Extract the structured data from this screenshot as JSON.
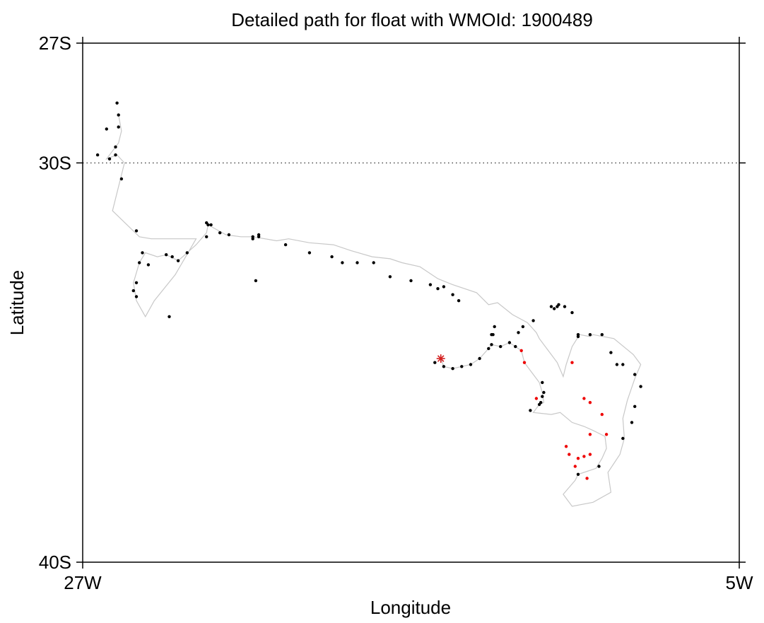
{
  "chart_data": {
    "type": "scatter",
    "title": "Detailed path for float with WMOId: 1900489",
    "xlabel": "Longitude",
    "ylabel": "Latitude",
    "xlim": [
      -27,
      -5
    ],
    "ylim": [
      -40,
      -27
    ],
    "x_ticks": [
      {
        "value": -27,
        "label": "27W"
      },
      {
        "value": -5,
        "label": "5W"
      }
    ],
    "y_ticks": [
      {
        "value": -27,
        "label": "27S"
      },
      {
        "value": -30,
        "label": "30S"
      },
      {
        "value": -40,
        "label": "40S"
      }
    ],
    "gridlines": [
      {
        "axis": "y",
        "value": -30,
        "style": "dotted"
      }
    ],
    "colors": {
      "path": "#c8c8c8",
      "profile": "#000000",
      "recent": "#ee0000",
      "deploy": "#d42020"
    },
    "deployment": {
      "lon": -15.0,
      "lat": -34.9,
      "marker": "asterisk"
    },
    "series": [
      {
        "role": "profile",
        "points": [
          [
            -15.2,
            -35.0
          ],
          [
            -14.9,
            -35.1
          ],
          [
            -14.6,
            -35.15
          ],
          [
            -14.3,
            -35.1
          ],
          [
            -14.0,
            -35.05
          ],
          [
            -13.7,
            -34.9
          ],
          [
            -13.4,
            -34.65
          ],
          [
            -13.3,
            -34.55
          ],
          [
            -13.0,
            -34.6
          ],
          [
            -12.7,
            -34.5
          ],
          [
            -12.5,
            -34.6
          ],
          [
            -13.3,
            -34.3
          ],
          [
            -13.25,
            -34.3
          ],
          [
            -13.2,
            -34.1
          ],
          [
            -12.4,
            -34.25
          ],
          [
            -12.25,
            -34.1
          ],
          [
            -11.9,
            -33.95
          ],
          [
            -11.3,
            -33.6
          ],
          [
            -11.2,
            -33.65
          ],
          [
            -11.1,
            -33.6
          ],
          [
            -11.05,
            -33.55
          ],
          [
            -10.85,
            -33.6
          ],
          [
            -10.6,
            -33.75
          ],
          [
            -10.4,
            -34.3
          ],
          [
            -10.4,
            -34.35
          ],
          [
            -10.0,
            -34.3
          ],
          [
            -9.6,
            -34.3
          ],
          [
            -9.3,
            -34.75
          ],
          [
            -9.1,
            -35.05
          ],
          [
            -8.9,
            -35.05
          ],
          [
            -8.5,
            -35.3
          ],
          [
            -8.3,
            -35.6
          ],
          [
            -8.5,
            -36.1
          ],
          [
            -8.6,
            -36.5
          ],
          [
            -8.9,
            -36.9
          ],
          [
            -9.7,
            -37.6
          ],
          [
            -10.4,
            -37.8
          ],
          [
            -12.0,
            -36.2
          ],
          [
            -11.7,
            -36.05
          ],
          [
            -11.65,
            -36.0
          ],
          [
            -11.6,
            -35.85
          ],
          [
            -11.55,
            -35.75
          ],
          [
            -11.6,
            -35.5
          ],
          [
            -14.4,
            -33.45
          ],
          [
            -14.6,
            -33.3
          ],
          [
            -14.9,
            -33.1
          ],
          [
            -15.1,
            -33.15
          ],
          [
            -15.35,
            -33.05
          ],
          [
            -16.0,
            -32.95
          ],
          [
            -16.7,
            -32.85
          ],
          [
            -17.25,
            -32.5
          ],
          [
            -17.8,
            -32.5
          ],
          [
            -18.3,
            -32.5
          ],
          [
            -18.65,
            -32.35
          ],
          [
            -19.4,
            -32.25
          ],
          [
            -20.2,
            -32.05
          ],
          [
            -21.1,
            -31.8
          ],
          [
            -21.3,
            -31.85
          ],
          [
            -21.3,
            -31.9
          ],
          [
            -22.1,
            -31.8
          ],
          [
            -22.4,
            -31.75
          ],
          [
            -21.1,
            -31.85
          ],
          [
            -22.8,
            -31.55
          ],
          [
            -22.85,
            -31.85
          ],
          [
            -23.8,
            -32.45
          ],
          [
            -24.0,
            -32.35
          ],
          [
            -24.2,
            -32.3
          ],
          [
            -24.8,
            -32.55
          ],
          [
            -25.1,
            -32.5
          ],
          [
            -25.2,
            -33.0
          ],
          [
            -25.3,
            -33.2
          ],
          [
            -25.2,
            -33.35
          ],
          [
            -24.1,
            -33.85
          ],
          [
            -21.2,
            -32.95
          ],
          [
            -23.5,
            -32.25
          ],
          [
            -25.0,
            -32.25
          ],
          [
            -22.7,
            -31.55
          ],
          [
            -22.85,
            -31.5
          ],
          [
            -25.2,
            -31.7
          ],
          [
            -25.7,
            -30.4
          ],
          [
            -25.9,
            -29.8
          ],
          [
            -26.1,
            -29.9
          ],
          [
            -26.5,
            -29.8
          ],
          [
            -25.9,
            -29.6
          ],
          [
            -26.2,
            -29.15
          ],
          [
            -25.8,
            -29.1
          ],
          [
            -25.8,
            -28.8
          ],
          [
            -25.85,
            -28.5
          ]
        ]
      },
      {
        "role": "recent",
        "points": [
          [
            -12.3,
            -34.7
          ],
          [
            -12.2,
            -35.0
          ],
          [
            -11.8,
            -35.9
          ],
          [
            -10.6,
            -35.0
          ],
          [
            -10.2,
            -35.9
          ],
          [
            -10.0,
            -36.0
          ],
          [
            -9.6,
            -36.3
          ],
          [
            -9.45,
            -36.8
          ],
          [
            -10.0,
            -36.8
          ],
          [
            -10.2,
            -37.35
          ],
          [
            -10.8,
            -37.1
          ],
          [
            -10.7,
            -37.3
          ],
          [
            -10.4,
            -37.4
          ],
          [
            -10.0,
            -37.3
          ],
          [
            -10.5,
            -37.6
          ],
          [
            -10.1,
            -37.9
          ]
        ]
      }
    ],
    "path": [
      [
        -15.0,
        -34.9
      ],
      [
        -14.9,
        -35.1
      ],
      [
        -14.6,
        -35.15
      ],
      [
        -14.3,
        -35.1
      ],
      [
        -14.0,
        -35.05
      ],
      [
        -13.7,
        -34.9
      ],
      [
        -13.4,
        -34.65
      ],
      [
        -13.3,
        -34.55
      ],
      [
        -13.0,
        -34.6
      ],
      [
        -12.7,
        -34.5
      ],
      [
        -12.3,
        -34.7
      ],
      [
        -12.2,
        -35.0
      ],
      [
        -12.0,
        -35.2
      ],
      [
        -11.7,
        -35.5
      ],
      [
        -11.6,
        -35.75
      ],
      [
        -11.55,
        -36.0
      ],
      [
        -11.7,
        -36.05
      ],
      [
        -11.9,
        -36.25
      ],
      [
        -11.3,
        -36.3
      ],
      [
        -11.0,
        -36.25
      ],
      [
        -10.6,
        -36.5
      ],
      [
        -10.2,
        -36.6
      ],
      [
        -9.9,
        -36.7
      ],
      [
        -9.5,
        -36.85
      ],
      [
        -9.45,
        -37.15
      ],
      [
        -9.6,
        -37.4
      ],
      [
        -9.8,
        -37.65
      ],
      [
        -10.2,
        -37.75
      ],
      [
        -10.4,
        -37.8
      ],
      [
        -10.5,
        -37.95
      ],
      [
        -10.9,
        -38.3
      ],
      [
        -10.6,
        -38.6
      ],
      [
        -9.9,
        -38.5
      ],
      [
        -9.3,
        -38.25
      ],
      [
        -9.4,
        -37.75
      ],
      [
        -9.0,
        -37.3
      ],
      [
        -8.85,
        -36.9
      ],
      [
        -8.9,
        -36.4
      ],
      [
        -8.75,
        -35.95
      ],
      [
        -8.5,
        -35.4
      ],
      [
        -8.3,
        -35.05
      ],
      [
        -8.55,
        -34.8
      ],
      [
        -9.2,
        -34.4
      ],
      [
        -9.9,
        -34.3
      ],
      [
        -10.0,
        -34.35
      ],
      [
        -10.35,
        -34.3
      ],
      [
        -10.6,
        -34.6
      ],
      [
        -10.8,
        -35.05
      ],
      [
        -10.9,
        -35.35
      ],
      [
        -11.1,
        -35.0
      ],
      [
        -11.3,
        -34.8
      ],
      [
        -11.7,
        -34.4
      ],
      [
        -11.8,
        -34.25
      ],
      [
        -12.1,
        -34.0
      ],
      [
        -12.6,
        -33.8
      ],
      [
        -13.1,
        -33.5
      ],
      [
        -13.4,
        -33.55
      ],
      [
        -13.8,
        -33.25
      ],
      [
        -14.6,
        -33.05
      ],
      [
        -15.1,
        -32.9
      ],
      [
        -15.7,
        -32.6
      ],
      [
        -16.3,
        -32.5
      ],
      [
        -16.7,
        -32.4
      ],
      [
        -17.3,
        -32.35
      ],
      [
        -18.0,
        -32.2
      ],
      [
        -18.6,
        -32.05
      ],
      [
        -19.4,
        -32.0
      ],
      [
        -20.1,
        -31.9
      ],
      [
        -20.5,
        -31.95
      ],
      [
        -21.3,
        -31.85
      ],
      [
        -21.7,
        -31.85
      ],
      [
        -22.2,
        -31.8
      ],
      [
        -22.8,
        -31.55
      ],
      [
        -22.85,
        -31.75
      ],
      [
        -23.2,
        -32.05
      ],
      [
        -23.5,
        -32.25
      ],
      [
        -23.8,
        -32.45
      ],
      [
        -24.2,
        -32.3
      ],
      [
        -24.5,
        -32.35
      ],
      [
        -24.9,
        -32.25
      ],
      [
        -25.1,
        -32.5
      ],
      [
        -25.3,
        -33.0
      ],
      [
        -25.2,
        -33.45
      ],
      [
        -24.9,
        -33.85
      ],
      [
        -24.6,
        -33.45
      ],
      [
        -23.9,
        -32.8
      ],
      [
        -23.2,
        -31.9
      ],
      [
        -24.7,
        -31.9
      ],
      [
        -25.1,
        -31.85
      ],
      [
        -26.0,
        -31.2
      ],
      [
        -25.6,
        -30.0
      ],
      [
        -25.85,
        -29.8
      ],
      [
        -26.2,
        -29.9
      ],
      [
        -25.8,
        -29.5
      ],
      [
        -25.7,
        -29.2
      ],
      [
        -25.8,
        -28.8
      ]
    ]
  }
}
